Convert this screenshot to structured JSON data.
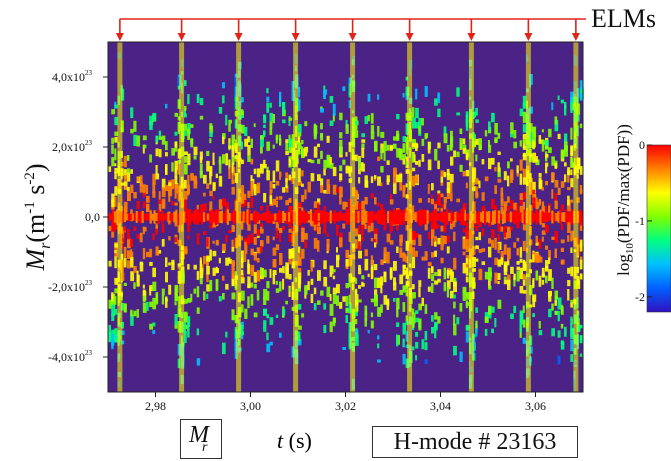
{
  "chart_data": {
    "type": "heatmap",
    "xlabel": "t (s)",
    "ylabel_symbol": "M",
    "ylabel_sub": "r",
    "ylabel_units_open": "(m",
    "ylabel_units_exp1": "-1",
    "ylabel_units_mid": " s",
    "ylabel_units_exp2": "-2",
    "ylabel_units_close": ")",
    "xlim": [
      2.97,
      3.07
    ],
    "ylim": [
      -5e+23,
      5e+23
    ],
    "x_ticks": [
      2.98,
      3.0,
      3.02,
      3.04,
      3.06
    ],
    "x_tick_labels": [
      "2,98",
      "3,00",
      "3,02",
      "3,04",
      "3,06"
    ],
    "y_ticks": [
      4e+23,
      2e+23,
      0,
      -2e+23,
      -4e+23
    ],
    "y_tick_mantissas": [
      "4,0x10",
      "2,0x10",
      "0,0",
      "-2,0x10",
      "-4,0x10"
    ],
    "y_tick_exponents": [
      "23",
      "23",
      "",
      "23",
      "23"
    ],
    "background_color": "#4b2286",
    "elm_times": [
      2.9725,
      2.9855,
      2.9975,
      3.0095,
      3.0215,
      3.0335,
      3.0465,
      3.0585,
      3.0685
    ],
    "elm_label": "ELMs",
    "elm_arrow_color": "#e0241a",
    "colorbar": {
      "label_prefix": "log",
      "label_sub": "10",
      "label_suffix": "(PDF/max(PDF))",
      "range": [
        -2.2,
        0
      ],
      "ticks": [
        0,
        -1,
        -2
      ],
      "tick_labels": [
        "0",
        "-1",
        "-2"
      ],
      "colors": [
        "#ff0000",
        "#ff8000",
        "#ffff00",
        "#80ff00",
        "#00ff80",
        "#00c0ff",
        "#0060ff",
        "#3010c0"
      ]
    }
  },
  "annotations": {
    "shot_label": "H-mode # 23163",
    "variable_symbol": "M",
    "variable_sub": "r",
    "time_symbol": "t",
    "time_unit": "(s)"
  }
}
